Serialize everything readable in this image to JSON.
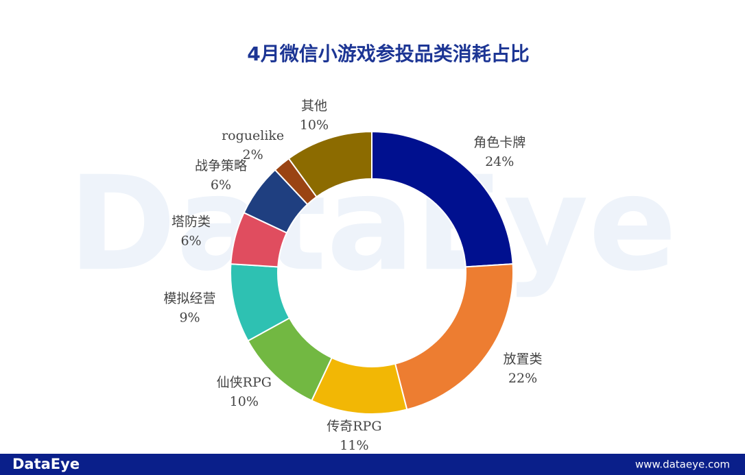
{
  "chart_data": {
    "type": "donut",
    "title": "4月微信小游戏参投品类消耗占比",
    "categories": [
      "角色卡牌",
      "放置类",
      "传奇RPG",
      "仙侠RPG",
      "模拟经营",
      "塔防类",
      "战争策略",
      "roguelike",
      "其他"
    ],
    "values": [
      24,
      22,
      11,
      10,
      9,
      6,
      6,
      2,
      10
    ],
    "value_labels": [
      "24%",
      "22%",
      "11%",
      "10%",
      "9%",
      "6%",
      "6%",
      "2%",
      "10%"
    ],
    "colors": [
      "#00108f",
      "#ed7d31",
      "#f2b705",
      "#72b842",
      "#2ec1b2",
      "#e04d5f",
      "#1f3f80",
      "#9a4413",
      "#8c6b00"
    ]
  },
  "watermark": "DataEye",
  "footer": {
    "brand": "DataEye",
    "url": "www.dataeye.com"
  }
}
